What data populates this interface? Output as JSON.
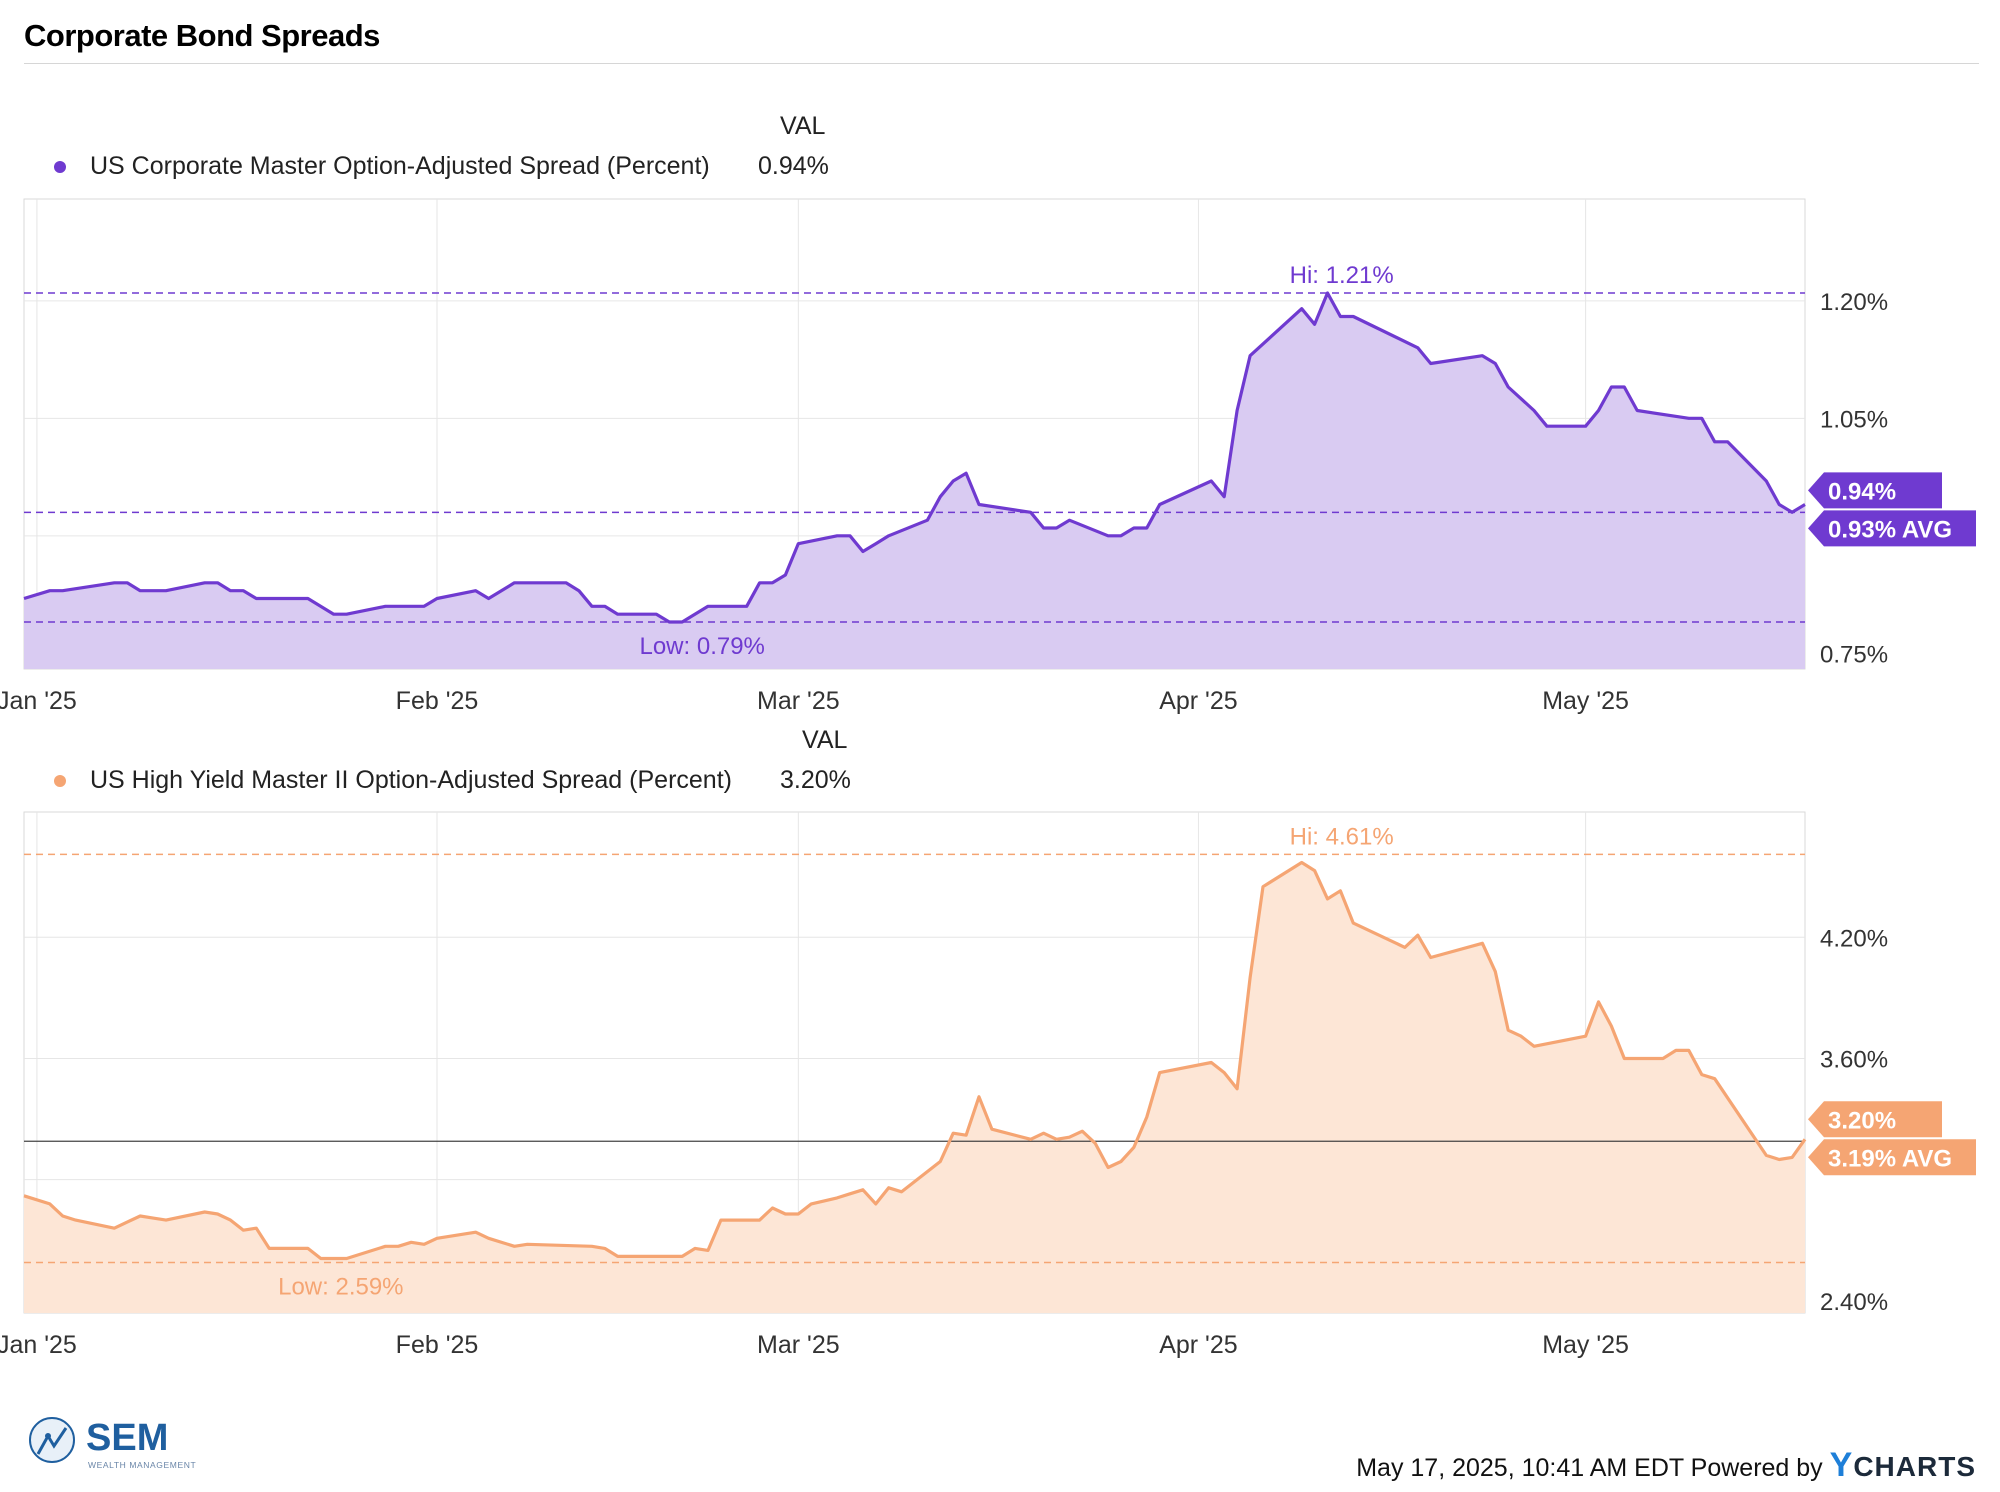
{
  "title": "Corporate Bond Spreads",
  "footer": {
    "timestamp": "May 17, 2025, 10:41 AM EDT Powered by",
    "brand_y": "Y",
    "brand_rest": "CHARTS",
    "logo_main": "SEM",
    "logo_sub": "WEALTH MANAGEMENT"
  },
  "chart_data": [
    {
      "type": "area",
      "legend_header": "VAL",
      "series_name": "US Corporate Master Option-Adjusted Spread (Percent)",
      "current_value": "0.94%",
      "color": "#6f3ad0",
      "fill": "#d9cbf2",
      "ylim": [
        0.73,
        1.33
      ],
      "y_ticks": [
        {
          "v": 0.75,
          "label": "0.75%"
        },
        {
          "v": 0.9,
          "label": ""
        },
        {
          "v": 1.05,
          "label": "1.05%"
        },
        {
          "v": 1.2,
          "label": "1.20%"
        }
      ],
      "x_ticks": [
        {
          "day": 0,
          "label": "Jan '25"
        },
        {
          "day": 31,
          "label": "Feb '25"
        },
        {
          "day": 59,
          "label": "Mar '25"
        },
        {
          "day": 90,
          "label": "Apr '25"
        },
        {
          "day": 120,
          "label": "May '25"
        }
      ],
      "hi": {
        "value": 1.21,
        "label": "Hi: 1.21%",
        "day": 98
      },
      "low": {
        "value": 0.79,
        "label": "Low: 0.79%",
        "day": 50
      },
      "avg": {
        "value": 0.93,
        "label": "0.93% AVG"
      },
      "last_label": "0.94%",
      "x_range": [
        -1,
        137
      ],
      "points": [
        [
          -1,
          0.82
        ],
        [
          1,
          0.83
        ],
        [
          2,
          0.83
        ],
        [
          6,
          0.84
        ],
        [
          7,
          0.84
        ],
        [
          8,
          0.83
        ],
        [
          10,
          0.83
        ],
        [
          13,
          0.84
        ],
        [
          14,
          0.84
        ],
        [
          15,
          0.83
        ],
        [
          16,
          0.83
        ],
        [
          17,
          0.82
        ],
        [
          21,
          0.82
        ],
        [
          23,
          0.8
        ],
        [
          24,
          0.8
        ],
        [
          27,
          0.81
        ],
        [
          30,
          0.81
        ],
        [
          31,
          0.82
        ],
        [
          34,
          0.83
        ],
        [
          35,
          0.82
        ],
        [
          37,
          0.84
        ],
        [
          41,
          0.84
        ],
        [
          42,
          0.83
        ],
        [
          43,
          0.81
        ],
        [
          44,
          0.81
        ],
        [
          45,
          0.8
        ],
        [
          48,
          0.8
        ],
        [
          49,
          0.79
        ],
        [
          50,
          0.79
        ],
        [
          52,
          0.81
        ],
        [
          55,
          0.81
        ],
        [
          56,
          0.84
        ],
        [
          57,
          0.84
        ],
        [
          58,
          0.85
        ],
        [
          59,
          0.89
        ],
        [
          62,
          0.9
        ],
        [
          63,
          0.9
        ],
        [
          64,
          0.88
        ],
        [
          65,
          0.89
        ],
        [
          66,
          0.9
        ],
        [
          69,
          0.92
        ],
        [
          70,
          0.95
        ],
        [
          71,
          0.97
        ],
        [
          72,
          0.98
        ],
        [
          73,
          0.94
        ],
        [
          77,
          0.93
        ],
        [
          78,
          0.91
        ],
        [
          79,
          0.91
        ],
        [
          80,
          0.92
        ],
        [
          83,
          0.9
        ],
        [
          84,
          0.9
        ],
        [
          85,
          0.91
        ],
        [
          86,
          0.91
        ],
        [
          87,
          0.94
        ],
        [
          91,
          0.97
        ],
        [
          92,
          0.95
        ],
        [
          93,
          1.06
        ],
        [
          94,
          1.13
        ],
        [
          98,
          1.19
        ],
        [
          99,
          1.17
        ],
        [
          100,
          1.21
        ],
        [
          101,
          1.18
        ],
        [
          102,
          1.18
        ],
        [
          107,
          1.14
        ],
        [
          108,
          1.12
        ],
        [
          112,
          1.13
        ],
        [
          113,
          1.12
        ],
        [
          114,
          1.09
        ],
        [
          116,
          1.06
        ],
        [
          117,
          1.04
        ],
        [
          120,
          1.04
        ],
        [
          121,
          1.06
        ],
        [
          122,
          1.09
        ],
        [
          123,
          1.09
        ],
        [
          124,
          1.06
        ],
        [
          128,
          1.05
        ],
        [
          129,
          1.05
        ],
        [
          130,
          1.02
        ],
        [
          131,
          1.02
        ],
        [
          134,
          0.97
        ],
        [
          135,
          0.94
        ],
        [
          136,
          0.93
        ],
        [
          137,
          0.94
        ]
      ]
    },
    {
      "type": "area",
      "legend_header": "VAL",
      "series_name": "US High Yield Master II Option-Adjusted Spread (Percent)",
      "current_value": "3.20%",
      "color": "#f5a573",
      "fill": "#fde6d6",
      "ylim": [
        2.34,
        4.82
      ],
      "y_ticks": [
        {
          "v": 2.4,
          "label": "2.40%"
        },
        {
          "v": 3.0,
          "label": ""
        },
        {
          "v": 3.6,
          "label": "3.60%"
        },
        {
          "v": 4.2,
          "label": "4.20%"
        }
      ],
      "x_ticks": [
        {
          "day": 0,
          "label": "Jan '25"
        },
        {
          "day": 31,
          "label": "Feb '25"
        },
        {
          "day": 59,
          "label": "Mar '25"
        },
        {
          "day": 90,
          "label": "Apr '25"
        },
        {
          "day": 120,
          "label": "May '25"
        }
      ],
      "hi": {
        "value": 4.61,
        "label": "Hi: 4.61%",
        "day": 98
      },
      "low": {
        "value": 2.59,
        "label": "Low: 2.59%",
        "day": 22
      },
      "avg": {
        "value": 3.19,
        "label": "3.19% AVG"
      },
      "last_label": "3.20%",
      "x_range": [
        -1,
        137
      ],
      "points": [
        [
          -1,
          2.92
        ],
        [
          1,
          2.88
        ],
        [
          2,
          2.82
        ],
        [
          3,
          2.8
        ],
        [
          6,
          2.76
        ],
        [
          7,
          2.79
        ],
        [
          8,
          2.82
        ],
        [
          9,
          2.81
        ],
        [
          10,
          2.8
        ],
        [
          13,
          2.84
        ],
        [
          14,
          2.83
        ],
        [
          15,
          2.8
        ],
        [
          16,
          2.75
        ],
        [
          17,
          2.76
        ],
        [
          18,
          2.66
        ],
        [
          21,
          2.66
        ],
        [
          22,
          2.61
        ],
        [
          23,
          2.61
        ],
        [
          24,
          2.61
        ],
        [
          27,
          2.67
        ],
        [
          28,
          2.67
        ],
        [
          29,
          2.69
        ],
        [
          30,
          2.68
        ],
        [
          31,
          2.71
        ],
        [
          34,
          2.74
        ],
        [
          35,
          2.71
        ],
        [
          37,
          2.67
        ],
        [
          38,
          2.68
        ],
        [
          43,
          2.67
        ],
        [
          44,
          2.66
        ],
        [
          45,
          2.62
        ],
        [
          50,
          2.62
        ],
        [
          51,
          2.66
        ],
        [
          52,
          2.65
        ],
        [
          53,
          2.8
        ],
        [
          56,
          2.8
        ],
        [
          57,
          2.86
        ],
        [
          58,
          2.83
        ],
        [
          59,
          2.83
        ],
        [
          60,
          2.88
        ],
        [
          62,
          2.91
        ],
        [
          63,
          2.93
        ],
        [
          64,
          2.95
        ],
        [
          65,
          2.88
        ],
        [
          66,
          2.96
        ],
        [
          67,
          2.94
        ],
        [
          70,
          3.09
        ],
        [
          71,
          3.23
        ],
        [
          72,
          3.22
        ],
        [
          73,
          3.41
        ],
        [
          74,
          3.25
        ],
        [
          77,
          3.2
        ],
        [
          78,
          3.23
        ],
        [
          79,
          3.2
        ],
        [
          80,
          3.21
        ],
        [
          81,
          3.24
        ],
        [
          82,
          3.18
        ],
        [
          83,
          3.06
        ],
        [
          84,
          3.09
        ],
        [
          85,
          3.16
        ],
        [
          86,
          3.31
        ],
        [
          87,
          3.53
        ],
        [
          91,
          3.58
        ],
        [
          92,
          3.53
        ],
        [
          93,
          3.45
        ],
        [
          94,
          4.0
        ],
        [
          95,
          4.45
        ],
        [
          98,
          4.57
        ],
        [
          99,
          4.53
        ],
        [
          100,
          4.39
        ],
        [
          101,
          4.43
        ],
        [
          102,
          4.27
        ],
        [
          106,
          4.15
        ],
        [
          107,
          4.21
        ],
        [
          108,
          4.1
        ],
        [
          112,
          4.17
        ],
        [
          113,
          4.03
        ],
        [
          114,
          3.74
        ],
        [
          115,
          3.71
        ],
        [
          116,
          3.66
        ],
        [
          120,
          3.71
        ],
        [
          121,
          3.88
        ],
        [
          122,
          3.76
        ],
        [
          123,
          3.6
        ],
        [
          124,
          3.6
        ],
        [
          126,
          3.6
        ],
        [
          127,
          3.64
        ],
        [
          128,
          3.64
        ],
        [
          129,
          3.52
        ],
        [
          130,
          3.5
        ],
        [
          134,
          3.12
        ],
        [
          135,
          3.1
        ],
        [
          136,
          3.11
        ],
        [
          137,
          3.2
        ]
      ]
    }
  ]
}
